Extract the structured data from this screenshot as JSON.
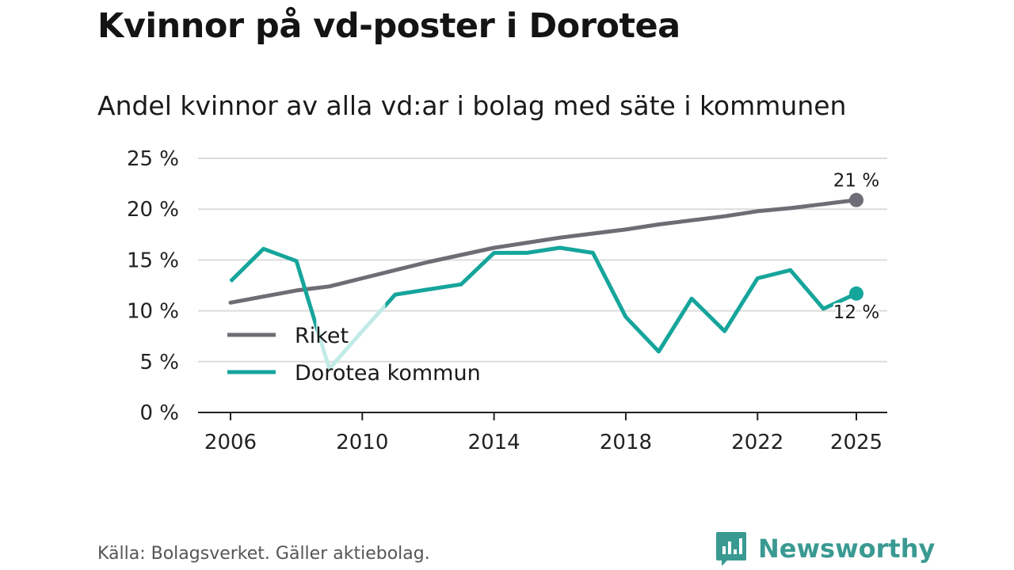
{
  "title": "Kvinnor på vd-poster i Dorotea",
  "subtitle": "Andel kvinnor av alla vd:ar i bolag med säte i kommunen",
  "source": "Källa: Bolagsverket. Gäller aktiebolag.",
  "brand": {
    "name": "Newsworthy",
    "color": "#3a9a92"
  },
  "chart_data": {
    "type": "line",
    "title": "Kvinnor på vd-poster i Dorotea",
    "subtitle": "Andel kvinnor av alla vd:ar i bolag med säte i kommunen",
    "xlabel": "",
    "ylabel": "",
    "xlim": [
      2006,
      2025
    ],
    "ylim": [
      0,
      25
    ],
    "grid": true,
    "x_ticks": [
      2006,
      2010,
      2014,
      2018,
      2022,
      2025
    ],
    "x_tick_labels": [
      "2006",
      "2010",
      "2014",
      "2018",
      "2022",
      "2025"
    ],
    "y_ticks": [
      0,
      5,
      10,
      15,
      20,
      25
    ],
    "y_tick_labels": [
      "0 %",
      "5 %",
      "10 %",
      "15 %",
      "20 %",
      "25 %"
    ],
    "legend_position": "bottom-left",
    "x": [
      2006,
      2007,
      2008,
      2009,
      2010,
      2011,
      2012,
      2013,
      2014,
      2015,
      2016,
      2017,
      2018,
      2019,
      2020,
      2021,
      2022,
      2023,
      2024,
      2025
    ],
    "series": [
      {
        "name": "Riket",
        "color": "#6e6c74",
        "values": [
          10.8,
          11.4,
          12.0,
          12.4,
          13.2,
          14.0,
          14.8,
          15.5,
          16.2,
          16.7,
          17.2,
          17.6,
          18.0,
          18.5,
          18.9,
          19.3,
          19.8,
          20.1,
          20.5,
          20.9
        ],
        "end_label": "21 %"
      },
      {
        "name": "Dorotea kommun",
        "color": "#16a59b",
        "faded_color": "#c2ebe7",
        "values": [
          12.9,
          16.1,
          14.9,
          4.3,
          8.0,
          11.6,
          12.1,
          12.6,
          15.7,
          15.7,
          16.2,
          15.7,
          9.4,
          6.0,
          11.2,
          8.0,
          13.2,
          14.0,
          10.2,
          11.7
        ],
        "faded_segments": [
          [
            2008.6,
            2010.7
          ]
        ],
        "end_label": "12 %"
      }
    ]
  }
}
